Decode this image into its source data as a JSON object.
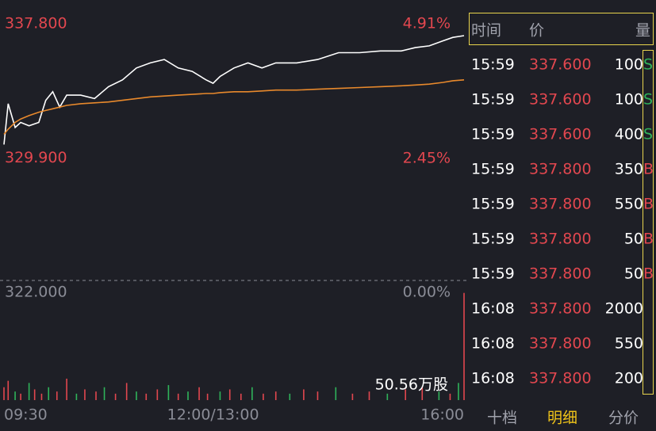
{
  "chart_data": {
    "type": "line",
    "x": [
      0,
      3,
      8,
      12,
      18,
      25,
      30,
      35,
      40,
      45,
      55,
      65,
      75,
      85,
      95,
      105,
      115,
      125,
      135,
      145,
      150,
      155,
      165,
      175,
      185,
      195,
      210,
      225,
      240,
      255,
      270,
      285,
      295,
      305,
      315,
      322,
      330
    ],
    "xlim": [
      0,
      330
    ],
    "xticks": [
      {
        "value": 0,
        "label": "09:30"
      },
      {
        "value": 150,
        "label": "12:00/13:00"
      },
      {
        "value": 330,
        "label": "16:00"
      }
    ],
    "ylim": [
      322,
      337.8
    ],
    "yticks": [
      {
        "value": 337.8,
        "label": "337.800"
      },
      {
        "value": 329.9,
        "label": "329.900"
      },
      {
        "value": 322,
        "label": "322.000"
      }
    ],
    "y2lim": [
      0,
      4.91
    ],
    "y2ticks": [
      {
        "value": 4.91,
        "label": "4.91%"
      },
      {
        "value": 2.45,
        "label": "2.45%"
      },
      {
        "value": 0,
        "label": "0.00%"
      }
    ],
    "series": [
      {
        "color": "#ffffff",
        "values": [
          330.0,
          332.4,
          331.0,
          331.3,
          331.1,
          331.3,
          332.6,
          333.1,
          332.2,
          332.9,
          332.9,
          332.7,
          333.4,
          333.8,
          334.5,
          334.8,
          335.0,
          334.5,
          334.3,
          333.8,
          333.6,
          334.0,
          334.5,
          334.8,
          334.5,
          334.8,
          334.8,
          335.0,
          335.4,
          335.4,
          335.5,
          335.5,
          335.7,
          335.8,
          336.1,
          336.3,
          336.4
        ]
      },
      {
        "color": "#e8892c",
        "values": [
          330.6,
          330.9,
          331.3,
          331.5,
          331.7,
          331.9,
          332.0,
          332.1,
          332.2,
          332.3,
          332.4,
          332.45,
          332.5,
          332.6,
          332.7,
          332.8,
          332.85,
          332.9,
          332.95,
          333.0,
          333.0,
          333.05,
          333.1,
          333.1,
          333.15,
          333.2,
          333.2,
          333.25,
          333.3,
          333.35,
          333.4,
          333.45,
          333.5,
          333.55,
          333.65,
          333.75,
          333.8
        ]
      }
    ],
    "volume": {
      "label": "50.56万股",
      "ylim": [
        0,
        51
      ],
      "x": [
        0,
        3,
        8,
        12,
        18,
        22,
        27,
        32,
        38,
        45,
        52,
        58,
        66,
        72,
        80,
        88,
        95,
        102,
        110,
        118,
        125,
        132,
        140,
        146,
        155,
        162,
        170,
        178,
        186,
        195,
        205,
        215,
        225,
        238,
        250,
        262,
        275,
        288,
        300,
        312,
        320,
        326,
        330
      ],
      "values": [
        6,
        9,
        4,
        3,
        8,
        5,
        3,
        6,
        4,
        10,
        3,
        5,
        4,
        6,
        3,
        8,
        4,
        3,
        5,
        7,
        3,
        4,
        6,
        3,
        4,
        5,
        3,
        6,
        3,
        4,
        3,
        5,
        4,
        6,
        3,
        4,
        3,
        5,
        6,
        4,
        3,
        8,
        50
      ],
      "colors": [
        "#e2474f",
        "#e2474f",
        "#2fb35a",
        "#e2474f",
        "#2fb35a",
        "#e2474f",
        "#e2474f",
        "#2fb35a",
        "#e2474f",
        "#e2474f",
        "#2fb35a",
        "#e2474f",
        "#e2474f",
        "#2fb35a",
        "#e2474f",
        "#e2474f",
        "#2fb35a",
        "#e2474f",
        "#e2474f",
        "#2fb35a",
        "#e2474f",
        "#2fb35a",
        "#e2474f",
        "#e2474f",
        "#2fb35a",
        "#e2474f",
        "#e2474f",
        "#2fb35a",
        "#e2474f",
        "#e2474f",
        "#2fb35a",
        "#e2474f",
        "#e2474f",
        "#2fb35a",
        "#e2474f",
        "#e2474f",
        "#2fb35a",
        "#e2474f",
        "#e2474f",
        "#2fb35a",
        "#e2474f",
        "#2fb35a",
        "#e2474f"
      ]
    }
  },
  "trades": {
    "headers": [
      "时间",
      "价",
      "量"
    ],
    "rows": [
      [
        "15:59",
        "337.600",
        "100",
        "S"
      ],
      [
        "15:59",
        "337.600",
        "100",
        "S"
      ],
      [
        "15:59",
        "337.600",
        "400",
        "S"
      ],
      [
        "15:59",
        "337.800",
        "350",
        "B"
      ],
      [
        "15:59",
        "337.800",
        "550",
        "B"
      ],
      [
        "15:59",
        "337.800",
        "50",
        "B"
      ],
      [
        "15:59",
        "337.800",
        "50",
        "B"
      ],
      [
        "16:08",
        "337.800",
        "2000"
      ],
      [
        "16:08",
        "337.800",
        "550"
      ],
      [
        "16:08",
        "337.800",
        "200"
      ]
    ],
    "tabs": [
      "十档",
      "明细",
      "分价"
    ],
    "active_tab": 1
  }
}
